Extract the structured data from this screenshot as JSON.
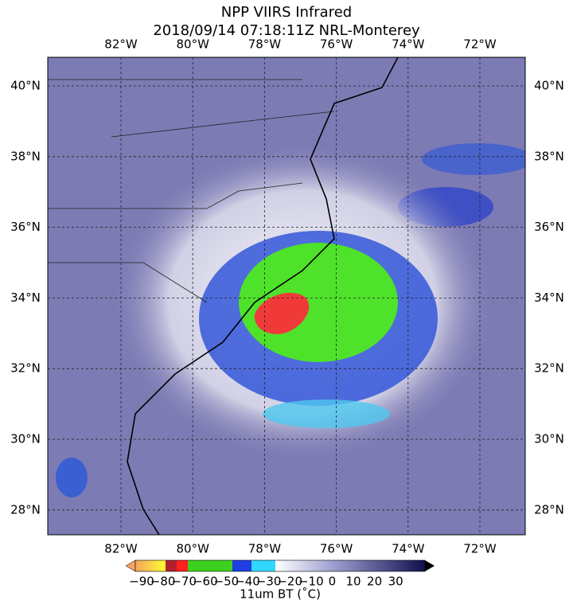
{
  "header": {
    "title_line1": "NPP VIIRS Infrared",
    "title_line2": "2018/09/14 07:18:11Z NRL-Monterey"
  },
  "map": {
    "lon_labels": [
      "82°W",
      "80°W",
      "78°W",
      "76°W",
      "74°W",
      "72°W"
    ],
    "lat_labels": [
      "40°N",
      "38°N",
      "36°N",
      "34°N",
      "32°N",
      "30°N",
      "28°N"
    ]
  },
  "colorbar": {
    "tick_labels": [
      "−90",
      "−80",
      "−70",
      "−60",
      "−50",
      "−40",
      "−30",
      "−20",
      "−10",
      "0",
      "10",
      "20",
      "30"
    ],
    "label": "11um BT (˚C)"
  }
}
